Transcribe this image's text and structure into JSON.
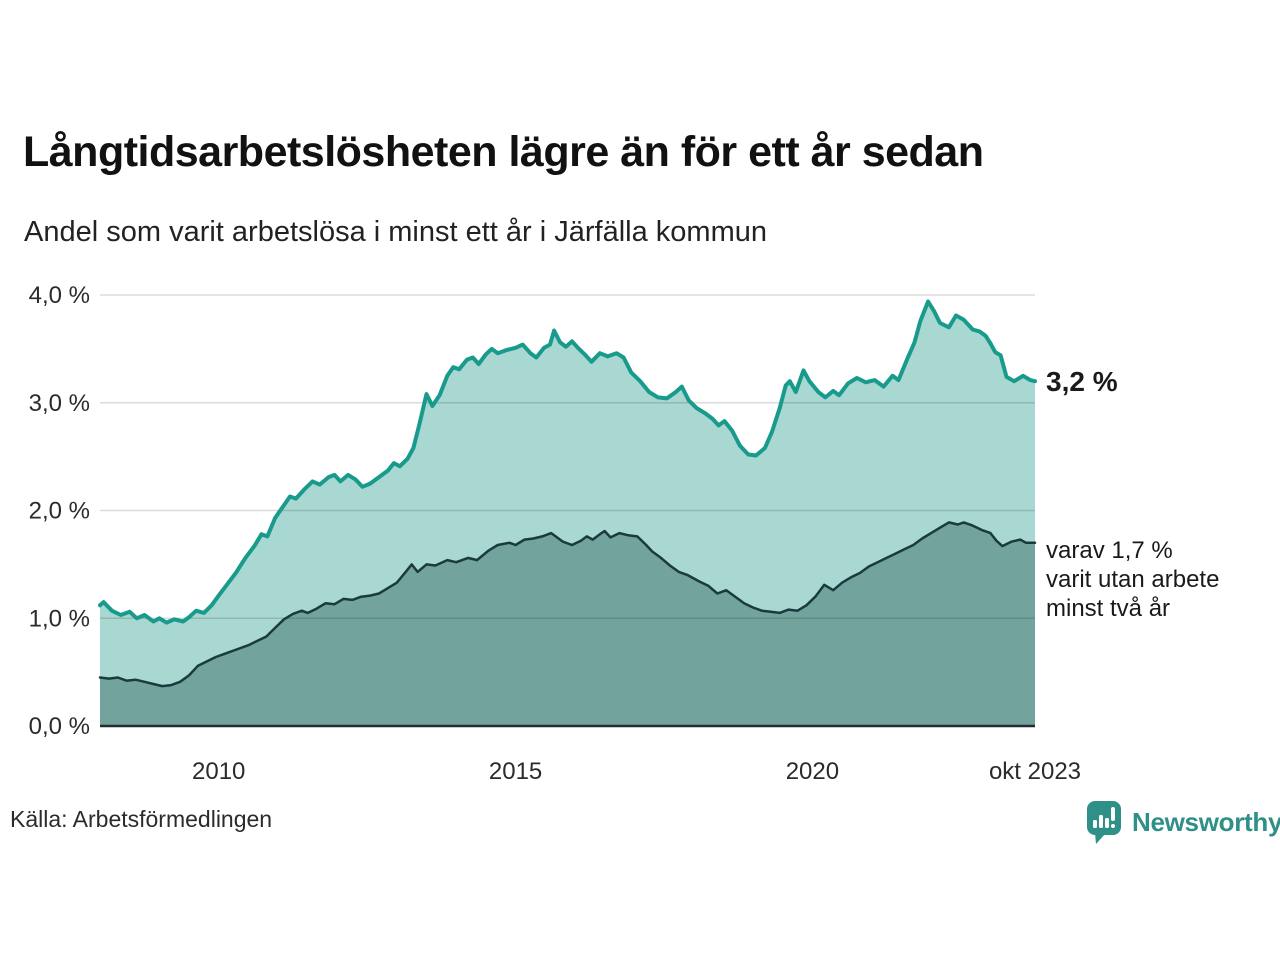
{
  "header": {
    "title": "Långtidsarbetslösheten lägre än för ett år sedan",
    "subtitle": "Andel som varit arbetslösa i minst ett år i Järfälla kommun"
  },
  "annotations": {
    "total_label": "3,2 %",
    "secondary_lines": [
      "varav 1,7 %",
      "varit utan arbete",
      "minst två år"
    ]
  },
  "footer": {
    "source": "Källa: Arbetsförmedlingen",
    "brand": "Newsworthy"
  },
  "colors": {
    "background": "#ffffff",
    "title_text": "#111111",
    "axis_text": "#2b2b2b",
    "gridline": "rgba(0,0,0,0.14)",
    "baseline": "#212d30",
    "total_line": "#189b8c",
    "total_fill": "#a9d7d1",
    "two_year_line": "#1b3a40",
    "two_year_fill": "#73a39d",
    "brand_teal": "#2f9087"
  },
  "chart_data": {
    "type": "area",
    "title": "Långtidsarbetslösheten lägre än för ett år sedan",
    "subtitle": "Andel som varit arbetslösa i minst ett år i Järfälla kommun",
    "xlabel": "",
    "ylabel": "",
    "grid": true,
    "legend_position": "none",
    "x_range": [
      2008.0,
      2023.75
    ],
    "ylim": [
      0,
      4.0
    ],
    "x_ticks": [
      {
        "label": "2010",
        "year": 2010
      },
      {
        "label": "2015",
        "year": 2015
      },
      {
        "label": "2020",
        "year": 2020
      },
      {
        "label": "okt 2023",
        "year": 2023.75
      }
    ],
    "y_ticks": [
      {
        "label": "0,0 %",
        "value": 0.0
      },
      {
        "label": "1,0 %",
        "value": 1.0
      },
      {
        "label": "2,0 %",
        "value": 2.0
      },
      {
        "label": "3,0 %",
        "value": 3.0
      },
      {
        "label": "4,0 %",
        "value": 4.0
      }
    ],
    "series": [
      {
        "name": "Andel arbetslösa minst ett år",
        "end_label": "3,2 %",
        "end_value": 3.2,
        "line_color": "#189b8c",
        "fill_color": "#a9d7d1",
        "line_width": 4,
        "points": [
          [
            2008.0,
            1.12
          ],
          [
            2008.06,
            1.15
          ],
          [
            2008.2,
            1.07
          ],
          [
            2008.35,
            1.03
          ],
          [
            2008.5,
            1.06
          ],
          [
            2008.62,
            1.0
          ],
          [
            2008.75,
            1.03
          ],
          [
            2008.9,
            0.97
          ],
          [
            2009.0,
            1.0
          ],
          [
            2009.12,
            0.96
          ],
          [
            2009.25,
            0.99
          ],
          [
            2009.4,
            0.97
          ],
          [
            2009.5,
            1.01
          ],
          [
            2009.62,
            1.07
          ],
          [
            2009.75,
            1.05
          ],
          [
            2009.88,
            1.12
          ],
          [
            2010.0,
            1.21
          ],
          [
            2010.15,
            1.32
          ],
          [
            2010.3,
            1.43
          ],
          [
            2010.45,
            1.56
          ],
          [
            2010.6,
            1.67
          ],
          [
            2010.72,
            1.78
          ],
          [
            2010.82,
            1.76
          ],
          [
            2010.95,
            1.93
          ],
          [
            2011.1,
            2.05
          ],
          [
            2011.2,
            2.13
          ],
          [
            2011.3,
            2.11
          ],
          [
            2011.45,
            2.2
          ],
          [
            2011.58,
            2.27
          ],
          [
            2011.7,
            2.24
          ],
          [
            2011.85,
            2.31
          ],
          [
            2011.95,
            2.33
          ],
          [
            2012.05,
            2.27
          ],
          [
            2012.18,
            2.33
          ],
          [
            2012.3,
            2.29
          ],
          [
            2012.42,
            2.22
          ],
          [
            2012.55,
            2.25
          ],
          [
            2012.7,
            2.31
          ],
          [
            2012.85,
            2.37
          ],
          [
            2012.95,
            2.44
          ],
          [
            2013.05,
            2.41
          ],
          [
            2013.18,
            2.48
          ],
          [
            2013.28,
            2.58
          ],
          [
            2013.38,
            2.8
          ],
          [
            2013.5,
            3.08
          ],
          [
            2013.6,
            2.97
          ],
          [
            2013.72,
            3.07
          ],
          [
            2013.85,
            3.25
          ],
          [
            2013.95,
            3.33
          ],
          [
            2014.05,
            3.31
          ],
          [
            2014.18,
            3.4
          ],
          [
            2014.28,
            3.42
          ],
          [
            2014.38,
            3.36
          ],
          [
            2014.5,
            3.45
          ],
          [
            2014.6,
            3.5
          ],
          [
            2014.7,
            3.46
          ],
          [
            2014.85,
            3.49
          ],
          [
            2015.0,
            3.51
          ],
          [
            2015.12,
            3.54
          ],
          [
            2015.25,
            3.46
          ],
          [
            2015.35,
            3.42
          ],
          [
            2015.48,
            3.51
          ],
          [
            2015.58,
            3.54
          ],
          [
            2015.65,
            3.67
          ],
          [
            2015.75,
            3.56
          ],
          [
            2015.85,
            3.52
          ],
          [
            2015.95,
            3.57
          ],
          [
            2016.05,
            3.51
          ],
          [
            2016.18,
            3.44
          ],
          [
            2016.28,
            3.38
          ],
          [
            2016.42,
            3.46
          ],
          [
            2016.55,
            3.43
          ],
          [
            2016.7,
            3.46
          ],
          [
            2016.82,
            3.42
          ],
          [
            2016.95,
            3.28
          ],
          [
            2017.1,
            3.2
          ],
          [
            2017.25,
            3.1
          ],
          [
            2017.4,
            3.05
          ],
          [
            2017.55,
            3.04
          ],
          [
            2017.7,
            3.1
          ],
          [
            2017.8,
            3.15
          ],
          [
            2017.92,
            3.02
          ],
          [
            2018.05,
            2.95
          ],
          [
            2018.2,
            2.9
          ],
          [
            2018.32,
            2.85
          ],
          [
            2018.42,
            2.79
          ],
          [
            2018.52,
            2.83
          ],
          [
            2018.65,
            2.74
          ],
          [
            2018.78,
            2.6
          ],
          [
            2018.92,
            2.52
          ],
          [
            2019.05,
            2.51
          ],
          [
            2019.2,
            2.58
          ],
          [
            2019.32,
            2.73
          ],
          [
            2019.45,
            2.95
          ],
          [
            2019.55,
            3.16
          ],
          [
            2019.62,
            3.2
          ],
          [
            2019.72,
            3.1
          ],
          [
            2019.85,
            3.3
          ],
          [
            2019.95,
            3.2
          ],
          [
            2020.1,
            3.1
          ],
          [
            2020.22,
            3.05
          ],
          [
            2020.35,
            3.11
          ],
          [
            2020.45,
            3.07
          ],
          [
            2020.6,
            3.18
          ],
          [
            2020.75,
            3.23
          ],
          [
            2020.9,
            3.19
          ],
          [
            2021.05,
            3.21
          ],
          [
            2021.2,
            3.15
          ],
          [
            2021.35,
            3.25
          ],
          [
            2021.45,
            3.21
          ],
          [
            2021.6,
            3.41
          ],
          [
            2021.72,
            3.56
          ],
          [
            2021.82,
            3.76
          ],
          [
            2021.95,
            3.94
          ],
          [
            2022.05,
            3.85
          ],
          [
            2022.15,
            3.74
          ],
          [
            2022.3,
            3.7
          ],
          [
            2022.42,
            3.81
          ],
          [
            2022.55,
            3.77
          ],
          [
            2022.7,
            3.68
          ],
          [
            2022.82,
            3.66
          ],
          [
            2022.92,
            3.62
          ],
          [
            2023.0,
            3.55
          ],
          [
            2023.08,
            3.47
          ],
          [
            2023.17,
            3.44
          ],
          [
            2023.27,
            3.24
          ],
          [
            2023.4,
            3.2
          ],
          [
            2023.55,
            3.25
          ],
          [
            2023.67,
            3.21
          ],
          [
            2023.75,
            3.2
          ]
        ]
      },
      {
        "name": "varav utan arbete minst två år",
        "end_label": "1,7 %",
        "end_value": 1.7,
        "line_color": "#1b3a40",
        "fill_color": "#73a39d",
        "line_width": 2.5,
        "points": [
          [
            2008.0,
            0.45
          ],
          [
            2008.15,
            0.44
          ],
          [
            2008.3,
            0.45
          ],
          [
            2008.45,
            0.42
          ],
          [
            2008.6,
            0.43
          ],
          [
            2008.75,
            0.41
          ],
          [
            2008.9,
            0.39
          ],
          [
            2009.05,
            0.37
          ],
          [
            2009.2,
            0.38
          ],
          [
            2009.35,
            0.41
          ],
          [
            2009.5,
            0.47
          ],
          [
            2009.65,
            0.56
          ],
          [
            2009.8,
            0.6
          ],
          [
            2009.95,
            0.64
          ],
          [
            2010.1,
            0.67
          ],
          [
            2010.3,
            0.71
          ],
          [
            2010.5,
            0.75
          ],
          [
            2010.65,
            0.79
          ],
          [
            2010.8,
            0.83
          ],
          [
            2010.95,
            0.91
          ],
          [
            2011.1,
            0.99
          ],
          [
            2011.25,
            1.04
          ],
          [
            2011.4,
            1.07
          ],
          [
            2011.5,
            1.05
          ],
          [
            2011.65,
            1.09
          ],
          [
            2011.8,
            1.14
          ],
          [
            2011.95,
            1.13
          ],
          [
            2012.1,
            1.18
          ],
          [
            2012.25,
            1.17
          ],
          [
            2012.4,
            1.2
          ],
          [
            2012.55,
            1.21
          ],
          [
            2012.7,
            1.23
          ],
          [
            2012.85,
            1.28
          ],
          [
            2013.0,
            1.33
          ],
          [
            2013.15,
            1.43
          ],
          [
            2013.25,
            1.5
          ],
          [
            2013.35,
            1.43
          ],
          [
            2013.5,
            1.5
          ],
          [
            2013.65,
            1.49
          ],
          [
            2013.85,
            1.54
          ],
          [
            2014.0,
            1.52
          ],
          [
            2014.2,
            1.56
          ],
          [
            2014.35,
            1.54
          ],
          [
            2014.55,
            1.63
          ],
          [
            2014.7,
            1.68
          ],
          [
            2014.9,
            1.7
          ],
          [
            2015.0,
            1.68
          ],
          [
            2015.15,
            1.73
          ],
          [
            2015.3,
            1.74
          ],
          [
            2015.45,
            1.76
          ],
          [
            2015.6,
            1.79
          ],
          [
            2015.8,
            1.71
          ],
          [
            2015.95,
            1.68
          ],
          [
            2016.1,
            1.72
          ],
          [
            2016.2,
            1.76
          ],
          [
            2016.3,
            1.73
          ],
          [
            2016.42,
            1.78
          ],
          [
            2016.5,
            1.81
          ],
          [
            2016.6,
            1.75
          ],
          [
            2016.75,
            1.79
          ],
          [
            2016.9,
            1.77
          ],
          [
            2017.05,
            1.76
          ],
          [
            2017.2,
            1.68
          ],
          [
            2017.3,
            1.62
          ],
          [
            2017.45,
            1.56
          ],
          [
            2017.6,
            1.49
          ],
          [
            2017.75,
            1.43
          ],
          [
            2017.9,
            1.4
          ],
          [
            2018.1,
            1.34
          ],
          [
            2018.25,
            1.3
          ],
          [
            2018.4,
            1.23
          ],
          [
            2018.55,
            1.26
          ],
          [
            2018.7,
            1.2
          ],
          [
            2018.85,
            1.14
          ],
          [
            2019.0,
            1.1
          ],
          [
            2019.15,
            1.07
          ],
          [
            2019.3,
            1.06
          ],
          [
            2019.45,
            1.05
          ],
          [
            2019.6,
            1.08
          ],
          [
            2019.75,
            1.07
          ],
          [
            2019.9,
            1.12
          ],
          [
            2020.05,
            1.2
          ],
          [
            2020.2,
            1.31
          ],
          [
            2020.35,
            1.26
          ],
          [
            2020.5,
            1.33
          ],
          [
            2020.65,
            1.38
          ],
          [
            2020.8,
            1.42
          ],
          [
            2020.95,
            1.48
          ],
          [
            2021.1,
            1.52
          ],
          [
            2021.25,
            1.56
          ],
          [
            2021.4,
            1.6
          ],
          [
            2021.55,
            1.64
          ],
          [
            2021.7,
            1.68
          ],
          [
            2021.85,
            1.74
          ],
          [
            2022.0,
            1.79
          ],
          [
            2022.15,
            1.84
          ],
          [
            2022.3,
            1.89
          ],
          [
            2022.45,
            1.87
          ],
          [
            2022.55,
            1.89
          ],
          [
            2022.7,
            1.86
          ],
          [
            2022.85,
            1.82
          ],
          [
            2023.0,
            1.79
          ],
          [
            2023.1,
            1.72
          ],
          [
            2023.2,
            1.67
          ],
          [
            2023.35,
            1.71
          ],
          [
            2023.5,
            1.73
          ],
          [
            2023.6,
            1.7
          ],
          [
            2023.75,
            1.7
          ]
        ]
      }
    ]
  }
}
